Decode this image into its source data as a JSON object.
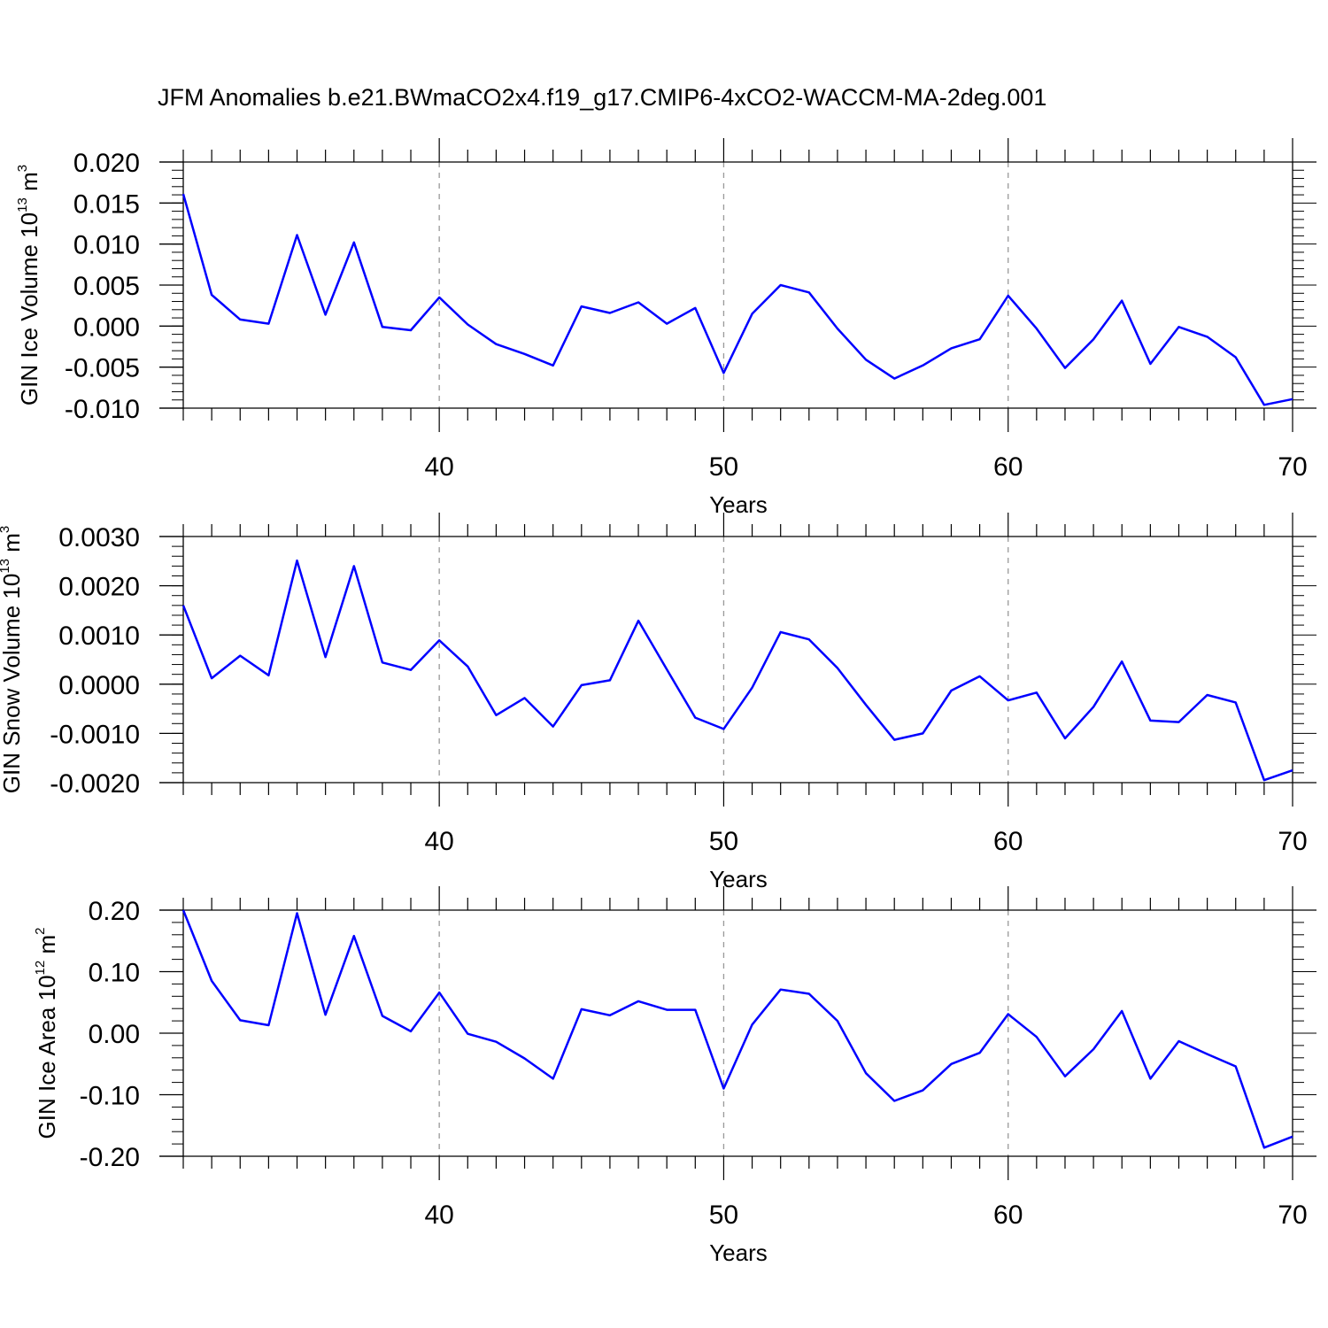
{
  "title": "JFM Anomalies b.e21.BWmaCO2x4.f19_g17.CMIP6-4xCO2-WACCM-MA-2deg.001",
  "chart_data": [
    {
      "type": "line",
      "ylabel": {
        "pre": "GIN Ice Volume 10",
        "sup": "13",
        "mid": " m",
        "sup2": "3"
      },
      "xlabel": "Years",
      "xlim": [
        31,
        70
      ],
      "ylim": [
        -0.01,
        0.02
      ],
      "xticks": [
        40,
        50,
        60,
        70
      ],
      "yticks": [
        -0.01,
        -0.005,
        0.0,
        0.005,
        0.01,
        0.015,
        0.02
      ],
      "ytick_labels": [
        "-0.010",
        "-0.005",
        "0.000",
        "0.005",
        "0.010",
        "0.015",
        "0.020"
      ],
      "line_color": "#0000ff",
      "x": [
        31,
        32,
        33,
        34,
        35,
        36,
        37,
        38,
        39,
        40,
        41,
        42,
        43,
        44,
        45,
        46,
        47,
        48,
        49,
        50,
        51,
        52,
        53,
        54,
        55,
        56,
        57,
        58,
        59,
        60,
        61,
        62,
        63,
        64,
        65,
        66,
        67,
        68,
        69,
        70
      ],
      "values": [
        0.0161,
        0.0038,
        0.0008,
        0.0003,
        0.0111,
        0.0014,
        0.0102,
        -0.0001,
        -0.0005,
        0.0035,
        0.0002,
        -0.0022,
        -0.0034,
        -0.0048,
        0.0024,
        0.0016,
        0.0029,
        0.0003,
        0.0022,
        -0.0057,
        0.0015,
        0.005,
        0.0041,
        -0.0003,
        -0.0041,
        -0.0064,
        -0.0048,
        -0.0027,
        -0.0016,
        0.0037,
        -0.0003,
        -0.0051,
        -0.0016,
        0.0031,
        -0.0046,
        -0.0001,
        -0.0013,
        -0.0038,
        -0.0096,
        -0.0089
      ]
    },
    {
      "type": "line",
      "ylabel": {
        "pre": "GIN Snow Volume 10",
        "sup": "13",
        "mid": " m",
        "sup2": "3"
      },
      "xlabel": "Years",
      "xlim": [
        31,
        70
      ],
      "ylim": [
        -0.002,
        0.003
      ],
      "xticks": [
        40,
        50,
        60,
        70
      ],
      "yticks": [
        -0.002,
        -0.001,
        0.0,
        0.001,
        0.002,
        0.003
      ],
      "ytick_labels": [
        "-0.0020",
        "-0.0010",
        "0.0000",
        "0.0010",
        "0.0020",
        "0.0030"
      ],
      "line_color": "#0000ff",
      "x": [
        31,
        32,
        33,
        34,
        35,
        36,
        37,
        38,
        39,
        40,
        41,
        42,
        43,
        44,
        45,
        46,
        47,
        48,
        49,
        50,
        51,
        52,
        53,
        54,
        55,
        56,
        57,
        58,
        59,
        60,
        61,
        62,
        63,
        64,
        65,
        66,
        67,
        68,
        69,
        70
      ],
      "values": [
        0.0016,
        0.00012,
        0.00058,
        0.00018,
        0.00251,
        0.00055,
        0.0024,
        0.00044,
        0.00029,
        0.00089,
        0.00036,
        -0.00063,
        -0.00028,
        -0.00086,
        -2e-05,
        8e-05,
        0.00129,
        0.0003,
        -0.00068,
        -0.00091,
        -7e-05,
        0.00106,
        0.00091,
        0.00033,
        -0.00042,
        -0.00113,
        -0.001,
        -0.00013,
        0.00016,
        -0.00033,
        -0.00017,
        -0.0011,
        -0.00046,
        0.00046,
        -0.00074,
        -0.00077,
        -0.00022,
        -0.00037,
        -0.00195,
        -0.00175
      ]
    },
    {
      "type": "line",
      "ylabel": {
        "pre": "GIN Ice Area 10",
        "sup": "12",
        "mid": " m",
        "sup2": "2"
      },
      "xlabel": "Years",
      "xlim": [
        31,
        70
      ],
      "ylim": [
        -0.2,
        0.2
      ],
      "xticks": [
        40,
        50,
        60,
        70
      ],
      "yticks": [
        -0.2,
        -0.1,
        0.0,
        0.1,
        0.2
      ],
      "ytick_labels": [
        "-0.20",
        "-0.10",
        "0.00",
        "0.10",
        "0.20"
      ],
      "line_color": "#0000ff",
      "x": [
        31,
        32,
        33,
        34,
        35,
        36,
        37,
        38,
        39,
        40,
        41,
        42,
        43,
        44,
        45,
        46,
        47,
        48,
        49,
        50,
        51,
        52,
        53,
        54,
        55,
        56,
        57,
        58,
        59,
        60,
        61,
        62,
        63,
        64,
        65,
        66,
        67,
        68,
        69,
        70
      ],
      "values": [
        0.2,
        0.085,
        0.021,
        0.013,
        0.195,
        0.03,
        0.158,
        0.028,
        0.003,
        0.066,
        -0.001,
        -0.014,
        -0.041,
        -0.074,
        0.039,
        0.029,
        0.052,
        0.038,
        0.038,
        -0.09,
        0.014,
        0.071,
        0.064,
        0.02,
        -0.065,
        -0.11,
        -0.093,
        -0.05,
        -0.032,
        0.031,
        -0.006,
        -0.07,
        -0.026,
        0.036,
        -0.074,
        -0.013,
        -0.034,
        -0.054,
        -0.186,
        -0.168
      ]
    }
  ]
}
